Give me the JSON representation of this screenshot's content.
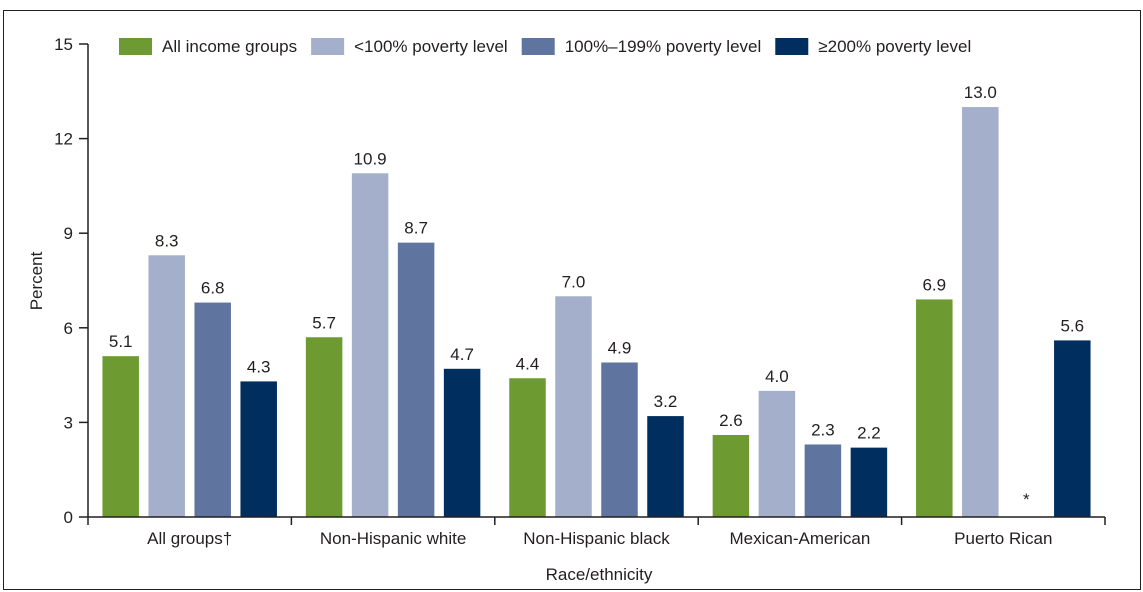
{
  "chart_data": {
    "type": "bar",
    "xlabel": "Race/ethnicity",
    "ylabel": "Percent",
    "ylim": [
      0,
      15
    ],
    "yticks": [
      0,
      3,
      6,
      9,
      12,
      15
    ],
    "categories": [
      "All groups†",
      "Non-Hispanic white",
      "Non-Hispanic black",
      "Mexican-American",
      "Puerto Rican"
    ],
    "legend_position": "top",
    "series": [
      {
        "name": "All income groups",
        "color": "#6d9a31",
        "values": [
          5.1,
          5.7,
          4.4,
          2.6,
          6.9
        ],
        "labels": [
          "5.1",
          "5.7",
          "4.4",
          "2.6",
          "6.9"
        ]
      },
      {
        "name": "<100% poverty level",
        "color": "#a4afcb",
        "values": [
          8.3,
          10.9,
          7.0,
          4.0,
          13.0
        ],
        "labels": [
          "8.3",
          "10.9",
          "7.0",
          "4.0",
          "13.0"
        ]
      },
      {
        "name": "100%–199% poverty level",
        "color": "#5f759f",
        "values": [
          6.8,
          8.7,
          4.9,
          2.3,
          null
        ],
        "labels": [
          "6.8",
          "8.7",
          "4.9",
          "2.3",
          "*"
        ]
      },
      {
        "name": "≥200% poverty level",
        "color": "#002e5e",
        "values": [
          4.3,
          4.7,
          3.2,
          2.2,
          5.6
        ],
        "labels": [
          "4.3",
          "4.7",
          "3.2",
          "2.2",
          "5.6"
        ]
      }
    ]
  }
}
